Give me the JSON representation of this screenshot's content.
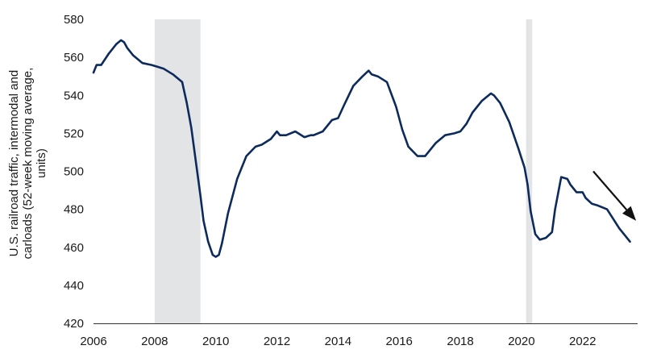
{
  "chart_data": {
    "type": "line",
    "title": "",
    "xlabel": "",
    "ylabel_lines": [
      "U.S. railroad traffic, intermodal and",
      "carloads (52-week moving average,",
      "units)"
    ],
    "xlim": [
      2006,
      2023.8
    ],
    "ylim": [
      420,
      580
    ],
    "x_ticks": [
      "2006",
      "2008",
      "2010",
      "2012",
      "2014",
      "2016",
      "2018",
      "2020",
      "2022"
    ],
    "y_ticks": [
      "420",
      "440",
      "460",
      "480",
      "500",
      "520",
      "540",
      "560",
      "580"
    ],
    "grid": false,
    "legend": "none",
    "recession_shading": [
      {
        "start": 2008.0,
        "end": 2009.5
      },
      {
        "start": 2020.15,
        "end": 2020.35
      }
    ],
    "series": [
      {
        "color": "#0c2a5c",
        "x": [
          2006.0,
          2006.1,
          2006.25,
          2006.5,
          2006.75,
          2006.9,
          2007.0,
          2007.1,
          2007.3,
          2007.6,
          2007.9,
          2008.1,
          2008.3,
          2008.6,
          2008.9,
          2009.05,
          2009.2,
          2009.35,
          2009.5,
          2009.6,
          2009.75,
          2009.9,
          2010.0,
          2010.1,
          2010.2,
          2010.4,
          2010.7,
          2011.0,
          2011.3,
          2011.5,
          2011.8,
          2012.0,
          2012.1,
          2012.3,
          2012.6,
          2012.9,
          2013.1,
          2013.2,
          2013.5,
          2013.8,
          2014.0,
          2014.2,
          2014.5,
          2014.8,
          2015.0,
          2015.1,
          2015.3,
          2015.6,
          2015.9,
          2016.1,
          2016.3,
          2016.6,
          2016.85,
          2017.0,
          2017.2,
          2017.5,
          2017.8,
          2018.0,
          2018.2,
          2018.4,
          2018.7,
          2019.0,
          2019.1,
          2019.3,
          2019.6,
          2019.9,
          2020.1,
          2020.2,
          2020.3,
          2020.45,
          2020.6,
          2020.8,
          2021.0,
          2021.1,
          2021.3,
          2021.5,
          2021.6,
          2021.8,
          2022.0,
          2022.1,
          2022.3,
          2022.5,
          2022.8,
          2023.0,
          2023.2,
          2023.4,
          2023.55
        ],
        "values": [
          552,
          556,
          556,
          562,
          567,
          569,
          568,
          565,
          561,
          557,
          556,
          555,
          554,
          551,
          547,
          536,
          523,
          505,
          487,
          474,
          463,
          456,
          455,
          456,
          462,
          478,
          496,
          508,
          513,
          514,
          517,
          521,
          519,
          519,
          521,
          518,
          519,
          519,
          521,
          527,
          528,
          535,
          545,
          550,
          553,
          551,
          550,
          547,
          534,
          522,
          513,
          508,
          508,
          511,
          515,
          519,
          520,
          521,
          525,
          531,
          537,
          541,
          540,
          536,
          526,
          512,
          502,
          493,
          479,
          467,
          464,
          465,
          468,
          480,
          497,
          496,
          493,
          489,
          489,
          486,
          483,
          482,
          480,
          475,
          470,
          466,
          463
        ]
      }
    ],
    "annotations": [
      {
        "type": "arrow",
        "direction": "down-right",
        "color": "#111111",
        "x_start": 2022.35,
        "y_start": 500,
        "x_end": 2023.75,
        "y_end": 474
      }
    ]
  }
}
